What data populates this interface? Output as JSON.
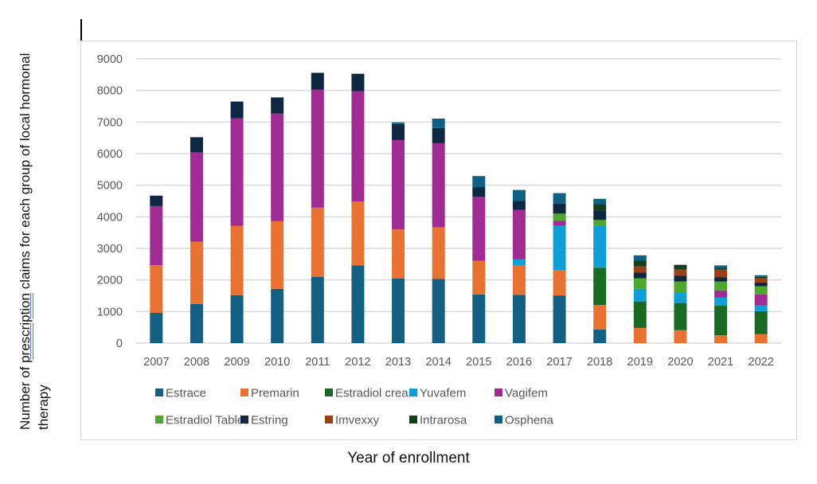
{
  "chart_data": {
    "type": "bar",
    "stacked": true,
    "title": "",
    "xlabel": "Year of enrollment",
    "ylabel": "Number of prescription claims for each group of local hormonal therapy",
    "ylabel_parts": {
      "before": "Number of ",
      "underlined": "prescription",
      "after": " claims for each group of local hormonal therapy"
    },
    "ylim": [
      0,
      9000
    ],
    "yticks": [
      0,
      1000,
      2000,
      3000,
      4000,
      5000,
      6000,
      7000,
      8000,
      9000
    ],
    "grid": true,
    "legend_position": "bottom",
    "categories": [
      "2007",
      "2008",
      "2009",
      "2010",
      "2011",
      "2012",
      "2013",
      "2014",
      "2015",
      "2016",
      "2017",
      "2018",
      "2019",
      "2020",
      "2021",
      "2022"
    ],
    "series": [
      {
        "name": "Estrace",
        "color": "#156082",
        "values": [
          960,
          1240,
          1520,
          1720,
          2100,
          2460,
          2050,
          2030,
          1540,
          1530,
          1510,
          430,
          0,
          0,
          0,
          0
        ]
      },
      {
        "name": "Premarin",
        "color": "#e97132",
        "values": [
          1510,
          1970,
          2190,
          2140,
          2190,
          2020,
          1550,
          1640,
          1070,
          930,
          800,
          780,
          480,
          410,
          250,
          280
        ]
      },
      {
        "name": "Estradiol cream",
        "color": "#196b24",
        "values": [
          0,
          0,
          0,
          0,
          0,
          0,
          0,
          0,
          0,
          0,
          0,
          1180,
          840,
          860,
          940,
          730
        ]
      },
      {
        "name": "Yuvafem",
        "color": "#0f9ed5",
        "values": [
          0,
          0,
          0,
          0,
          0,
          0,
          0,
          0,
          0,
          200,
          1410,
          1330,
          400,
          330,
          250,
          180
        ]
      },
      {
        "name": "Vagifem",
        "color": "#a02b93",
        "values": [
          1870,
          2830,
          3410,
          3410,
          3740,
          3500,
          2830,
          2660,
          2020,
          1560,
          150,
          0,
          0,
          0,
          230,
          350
        ]
      },
      {
        "name": "Estradiol Tablet",
        "color": "#4ea72e",
        "values": [
          0,
          0,
          0,
          0,
          0,
          0,
          0,
          0,
          0,
          0,
          230,
          180,
          330,
          350,
          280,
          260
        ]
      },
      {
        "name": "Estring",
        "color": "#0e2841",
        "values": [
          330,
          480,
          530,
          510,
          530,
          550,
          510,
          480,
          310,
          280,
          320,
          300,
          180,
          180,
          130,
          120
        ]
      },
      {
        "name": "Imvexxy",
        "color": "#9c3f14",
        "values": [
          0,
          0,
          0,
          0,
          0,
          0,
          0,
          0,
          0,
          0,
          0,
          0,
          200,
          200,
          250,
          130
        ]
      },
      {
        "name": "Intrarosa",
        "color": "#143f1c",
        "values": [
          0,
          0,
          0,
          0,
          0,
          0,
          0,
          0,
          0,
          0,
          0,
          200,
          180,
          150,
          50,
          50
        ]
      },
      {
        "name": "Osphena",
        "color": "#0f6085",
        "values": [
          0,
          0,
          0,
          0,
          0,
          0,
          50,
          300,
          350,
          350,
          330,
          170,
          170,
          0,
          80,
          50
        ]
      }
    ]
  },
  "colors": {
    "grid": "#d9d9d9",
    "tick_text": "#595959",
    "frame": "#d4d4d4"
  }
}
